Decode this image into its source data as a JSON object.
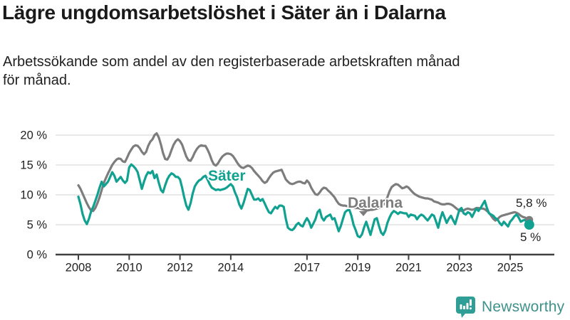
{
  "header": {
    "title": "Lägre ungdomsarbetslöshet i Säter än i Dalarna",
    "subtitle": "Arbetssökande som andel av den registerbaserade arbetskraften månad\nför månad."
  },
  "chart_data": {
    "type": "line",
    "unit": "%",
    "x_start_year": 2008,
    "x_frequency": "monthly",
    "x_range": [
      "2008-01",
      "2025-10"
    ],
    "ylim": [
      0,
      21
    ],
    "grid": "horizontal",
    "y_ticks": [
      {
        "label": "0 %",
        "value": 0
      },
      {
        "label": "5 %",
        "value": 5
      },
      {
        "label": "10 %",
        "value": 10
      },
      {
        "label": "15 %",
        "value": 15
      },
      {
        "label": "20 %",
        "value": 20
      }
    ],
    "x_ticks": [
      "2008",
      "2010",
      "2012",
      "2014",
      "2017",
      "2019",
      "2021",
      "2023",
      "2025"
    ],
    "series": [
      {
        "name": "Dalarna",
        "color": "#7d7d7d",
        "end_label": "5,8 %",
        "values": [
          11.6,
          11.0,
          10.2,
          9.4,
          8.6,
          7.9,
          7.4,
          7.3,
          7.8,
          8.6,
          9.6,
          10.8,
          12.0,
          12.8,
          13.6,
          14.3,
          15.0,
          15.5,
          15.9,
          16.1,
          16.0,
          15.6,
          15.5,
          16.2,
          17.0,
          17.6,
          18.1,
          18.3,
          18.2,
          17.8,
          17.2,
          16.8,
          17.2,
          18.2,
          18.9,
          19.3,
          20.0,
          20.3,
          19.6,
          18.4,
          17.0,
          16.0,
          15.9,
          16.5,
          17.5,
          18.4,
          19.0,
          19.3,
          19.0,
          18.4,
          17.4,
          16.4,
          15.8,
          15.7,
          16.3,
          17.1,
          17.7,
          18.1,
          18.3,
          18.2,
          18.2,
          17.6,
          16.8,
          15.8,
          15.1,
          14.9,
          15.3,
          15.9,
          16.4,
          16.7,
          16.9,
          16.9,
          16.8,
          16.5,
          16.0,
          15.4,
          14.9,
          14.6,
          14.5,
          14.7,
          14.9,
          14.8,
          14.5,
          14.0,
          13.6,
          13.2,
          12.8,
          12.3,
          12.0,
          12.2,
          12.8,
          13.3,
          13.7,
          13.9,
          14.0,
          14.1,
          14.2,
          13.4,
          12.6,
          12.2,
          11.9,
          11.8,
          11.9,
          12.1,
          12.2,
          12.2,
          12.0,
          11.9,
          12.4,
          12.0,
          11.2,
          10.6,
          10.1,
          10.0,
          10.4,
          10.9,
          11.2,
          11.1,
          10.7,
          10.4,
          10.0,
          9.6,
          9.0,
          8.5,
          8.3,
          8.2,
          8.2,
          8.1,
          8.0,
          7.9,
          7.8,
          7.8,
          7.8,
          7.7,
          7.6,
          7.5,
          7.4,
          7.4,
          7.5,
          7.5,
          7.6,
          7.7,
          7.8,
          8.0,
          8.3,
          8.8,
          9.6,
          10.6,
          11.3,
          11.6,
          11.8,
          11.7,
          11.4,
          11.1,
          11.2,
          11.4,
          11.2,
          10.8,
          10.4,
          10.1,
          9.9,
          9.7,
          9.6,
          9.5,
          9.4,
          9.4,
          9.3,
          9.2,
          8.9,
          8.8,
          8.7,
          8.5,
          8.4,
          8.4,
          8.5,
          8.5,
          8.4,
          8.2,
          7.9,
          7.6,
          7.4,
          7.3,
          7.4,
          7.6,
          7.7,
          7.6,
          7.5,
          7.6,
          7.8,
          7.8,
          7.7,
          7.7,
          7.6,
          7.3,
          7.0,
          6.5,
          6.0,
          5.7,
          5.9,
          6.3,
          6.5,
          6.6,
          6.7,
          6.8,
          6.9,
          7.0,
          7.1,
          7.0,
          6.8,
          6.5,
          6.3,
          6.2,
          6.0,
          5.8
        ]
      },
      {
        "name": "Säter",
        "color": "#10a191",
        "end_label": "5 %",
        "values": [
          9.7,
          8.4,
          6.8,
          5.7,
          5.1,
          6.0,
          7.2,
          8.0,
          9.0,
          10.0,
          11.2,
          12.2,
          11.4,
          11.8,
          12.2,
          13.0,
          13.8,
          13.2,
          12.2,
          12.6,
          13.0,
          12.4,
          12.0,
          12.4,
          14.6,
          15.1,
          14.8,
          14.4,
          13.8,
          12.4,
          11.0,
          12.2,
          13.2,
          13.8,
          13.6,
          14.0,
          12.8,
          13.4,
          12.0,
          10.8,
          10.4,
          11.6,
          12.6,
          13.2,
          13.6,
          13.4,
          13.0,
          13.0,
          12.6,
          11.2,
          9.6,
          8.2,
          7.5,
          8.6,
          10.2,
          11.4,
          12.0,
          12.4,
          12.6,
          13.0,
          13.2,
          12.6,
          11.8,
          11.2,
          11.0,
          10.8,
          10.9,
          10.8,
          10.9,
          11.0,
          11.2,
          11.5,
          11.8,
          11.4,
          10.4,
          9.6,
          8.4,
          7.7,
          8.6,
          9.8,
          11.0,
          10.8,
          10.0,
          9.2,
          9.2,
          9.4,
          9.0,
          9.3,
          8.6,
          7.8,
          7.1,
          6.9,
          7.5,
          8.0,
          7.7,
          8.2,
          8.2,
          8.0,
          6.0,
          4.5,
          4.2,
          4.1,
          4.4,
          5.0,
          5.3,
          4.9,
          4.7,
          5.5,
          6.1,
          5.5,
          4.5,
          5.2,
          5.9,
          7.1,
          7.5,
          6.2,
          5.7,
          6.3,
          6.5,
          6.7,
          5.9,
          6.1,
          5.0,
          3.9,
          4.8,
          6.0,
          7.1,
          7.4,
          7.5,
          6.5,
          5.0,
          4.1,
          3.1,
          2.9,
          3.4,
          4.6,
          5.5,
          4.4,
          3.3,
          4.6,
          5.9,
          6.1,
          4.8,
          3.7,
          3.3,
          4.0,
          5.3,
          6.2,
          6.9,
          7.3,
          7.1,
          6.8,
          7.1,
          7.0,
          6.9,
          6.9,
          6.3,
          6.7,
          6.6,
          6.5,
          5.9,
          6.4,
          6.7,
          6.5,
          6.1,
          5.7,
          6.2,
          6.7,
          6.5,
          5.5,
          4.5,
          6.0,
          7.1,
          6.2,
          5.3,
          6.0,
          6.5,
          5.8,
          5.1,
          6.3,
          7.5,
          7.8,
          6.9,
          6.7,
          7.1,
          6.9,
          6.3,
          7.0,
          7.7,
          7.3,
          7.8,
          8.4,
          9.0,
          7.8,
          6.9,
          6.7,
          6.5,
          6.1,
          5.9,
          5.3,
          4.9,
          5.5,
          5.1,
          4.7,
          5.5,
          5.9,
          6.4,
          6.7,
          6.2,
          5.5,
          5.7,
          5.8,
          5.4,
          5.0
        ]
      }
    ],
    "colors": {
      "grid": "#dcdcdc",
      "axis": "#404040",
      "tick_text": "#222222"
    }
  },
  "branding": {
    "logo_text": "Newsworthy",
    "logo_color": "#3f918c",
    "icon_color": "#2f9e96",
    "icon_glyph_color": "#ffffff"
  }
}
